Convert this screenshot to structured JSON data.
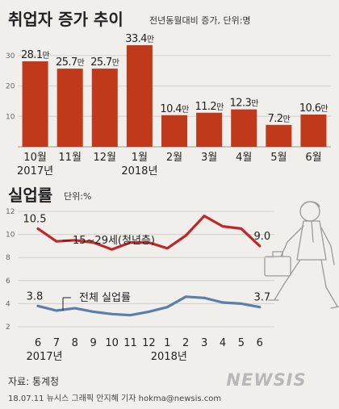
{
  "chart_data": [
    {
      "type": "bar",
      "title": "취업자 증가 추이",
      "subtitle": "전년동월대비 증가, 단위:명",
      "categories": [
        "10월",
        "11월",
        "12월",
        "1월",
        "2월",
        "3월",
        "4월",
        "5월",
        "6월"
      ],
      "year_labels": [
        {
          "index": 0,
          "label": "2017년"
        },
        {
          "index": 3,
          "label": "2018년"
        }
      ],
      "values": [
        28.1,
        25.7,
        25.7,
        33.4,
        10.4,
        11.2,
        12.3,
        7.2,
        10.6
      ],
      "value_unit": "만",
      "yticks": [
        "10",
        "20",
        "30"
      ],
      "ylim": [
        0,
        35
      ],
      "bar_color": "#c0391b"
    },
    {
      "type": "line",
      "title": "실업률",
      "subtitle": "단위:%",
      "categories": [
        "6",
        "7",
        "8",
        "9",
        "10",
        "11",
        "12",
        "1",
        "2",
        "3",
        "4",
        "5",
        "6"
      ],
      "year_labels": [
        {
          "index": 0,
          "label": "2017년"
        },
        {
          "index": 7,
          "label": "2018년"
        }
      ],
      "yticks": [
        "2",
        "4",
        "6",
        "8",
        "10",
        "12"
      ],
      "ylim": [
        2,
        12
      ],
      "series": [
        {
          "name": "15~29세(청년층)",
          "values": [
            10.5,
            9.4,
            9.5,
            9.3,
            8.7,
            9.3,
            9.3,
            8.8,
            9.9,
            11.6,
            10.7,
            10.5,
            9.0
          ],
          "color": "#c0272d",
          "start_label": "10.5",
          "end_label": "9.0"
        },
        {
          "name": "전체 실업률",
          "values": [
            3.8,
            3.4,
            3.6,
            3.3,
            3.1,
            3.0,
            3.3,
            3.7,
            4.6,
            4.5,
            4.1,
            4.0,
            3.7
          ],
          "color": "#5b7fa6",
          "start_label": "3.8",
          "end_label": "3.7"
        }
      ]
    }
  ],
  "footer": {
    "source": "자료: 통계청",
    "credit": "18.07.11  뉴시스 그래픽 안지혜 기자  hokma@newsis.com",
    "watermark": "NEWSIS"
  }
}
